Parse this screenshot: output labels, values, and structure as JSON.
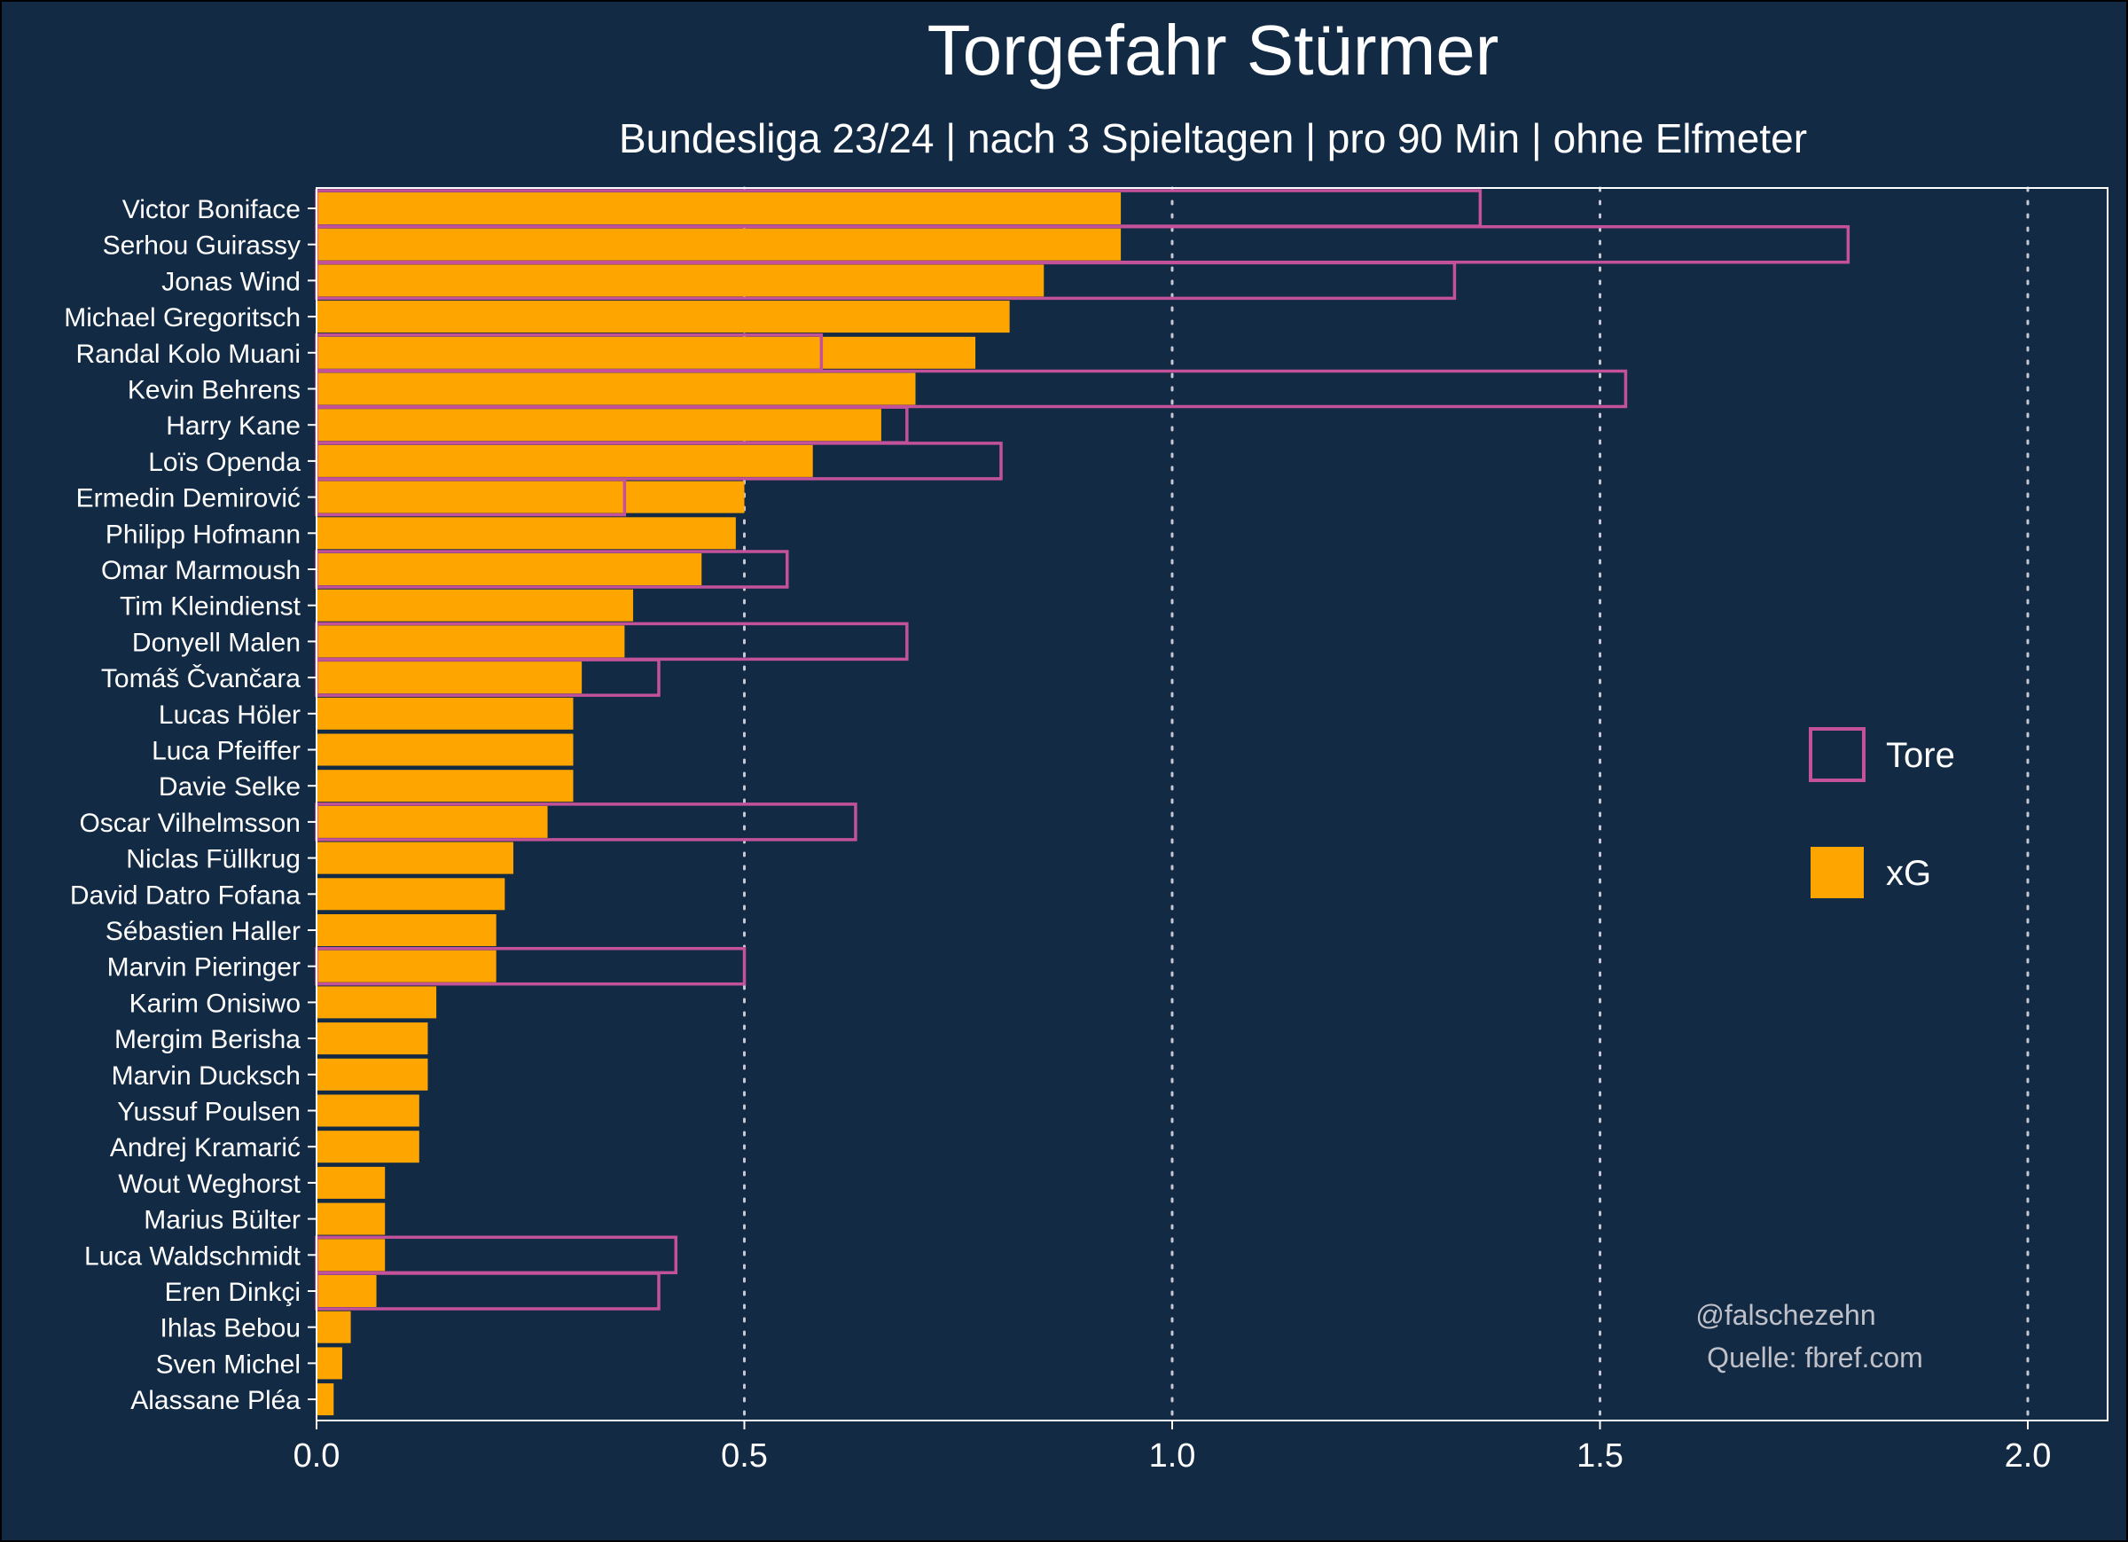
{
  "colors": {
    "background": "#122a44",
    "xg_fill": "#ffa500",
    "tore_outline": "#c4529a",
    "text": "#ffffff",
    "grid": "#c8c8d4",
    "credit_text": "#c0c0c8"
  },
  "chart_data": {
    "type": "bar",
    "orientation": "horizontal",
    "title": "Torgefahr Stürmer",
    "subtitle": "Bundesliga 23/24 | nach 3 Spieltagen | pro 90 Min | ohne Elfmeter",
    "xlim": [
      0,
      2.1
    ],
    "x_ticks": [
      "0.0",
      "0.5",
      "1.0",
      "1.5",
      "2.0"
    ],
    "x_tick_values": [
      0,
      0.5,
      1.0,
      1.5,
      2.0
    ],
    "grid": "vertical dotted",
    "legend": {
      "placement": "right",
      "items": [
        {
          "label": "Tore",
          "style": "outline"
        },
        {
          "label": "xG",
          "style": "fill"
        }
      ]
    },
    "credits": [
      "@falschezehn",
      "Quelle: fbref.com"
    ],
    "categories": [
      "Victor Boniface",
      "Serhou Guirassy",
      "Jonas Wind",
      "Michael Gregoritsch",
      "Randal Kolo Muani",
      "Kevin Behrens",
      "Harry Kane",
      "Loïs Openda",
      "Ermedin Demirović",
      "Philipp Hofmann",
      "Omar Marmoush",
      "Tim Kleindienst",
      "Donyell Malen",
      "Tomáš Čvančara",
      "Lucas Höler",
      "Luca Pfeiffer",
      "Davie Selke",
      "Oscar Vilhelmsson",
      "Niclas Füllkrug",
      "David Datro Fofana",
      "Sébastien Haller",
      "Marvin Pieringer",
      "Karim Onisiwo",
      "Mergim Berisha",
      "Marvin Ducksch",
      "Yussuf Poulsen",
      "Andrej Kramarić",
      "Wout Weghorst",
      "Marius Bülter",
      "Luca Waldschmidt",
      "Eren Dinkçi",
      "Ihlas Bebou",
      "Sven Michel",
      "Alassane Pléa"
    ],
    "series": [
      {
        "name": "xG",
        "values": [
          0.94,
          0.94,
          0.85,
          0.81,
          0.77,
          0.7,
          0.66,
          0.58,
          0.5,
          0.49,
          0.45,
          0.37,
          0.36,
          0.31,
          0.3,
          0.3,
          0.3,
          0.27,
          0.23,
          0.22,
          0.21,
          0.21,
          0.14,
          0.13,
          0.13,
          0.12,
          0.12,
          0.08,
          0.08,
          0.08,
          0.07,
          0.04,
          0.03,
          0.02
        ]
      },
      {
        "name": "Tore",
        "values": [
          1.36,
          1.79,
          1.33,
          0,
          0.59,
          1.53,
          0.69,
          0.8,
          0.36,
          0,
          0.55,
          0,
          0.69,
          0.4,
          0,
          0,
          0,
          0.63,
          0,
          0,
          0,
          0.5,
          0,
          0,
          0,
          0,
          0,
          0,
          0,
          0.42,
          0.4,
          0,
          0,
          0
        ]
      }
    ]
  }
}
